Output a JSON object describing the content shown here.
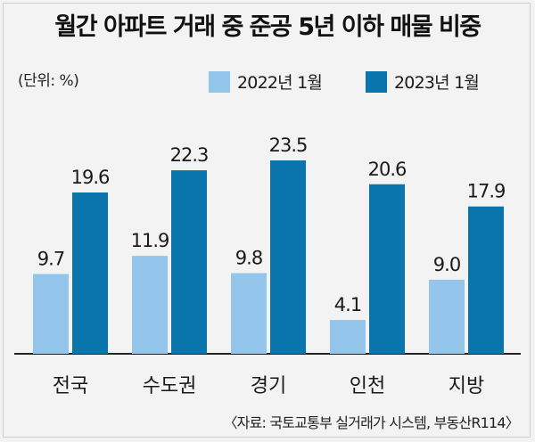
{
  "title": "월간 아파트 거래 중 준공 5년 이하 매물 비중",
  "unit_label": "(단위: %)",
  "source": "〈자료: 국토교통부 실거래가 시스템, 부동산R114〉",
  "colors": {
    "light": "#93c6ea",
    "dark": "#0a74ac",
    "axis": "#222222"
  },
  "chart_data": {
    "type": "bar",
    "title": "월간 아파트 거래 중 준공 5년 이하 매물 비중",
    "ylabel": "(단위: %)",
    "xlabel": "",
    "categories": [
      "전국",
      "수도권",
      "경기",
      "인천",
      "지방"
    ],
    "series": [
      {
        "name": "2022년 1월",
        "values": [
          9.7,
          11.9,
          9.8,
          4.1,
          9.0
        ],
        "labels": [
          "9.7",
          "11.9",
          "9.8",
          "4.1",
          "9.0"
        ],
        "color": "#93c6ea"
      },
      {
        "name": "2023년 1월",
        "values": [
          19.6,
          22.3,
          23.5,
          20.6,
          17.9
        ],
        "labels": [
          "19.6",
          "22.3",
          "23.5",
          "20.6",
          "17.9"
        ],
        "color": "#0a74ac"
      }
    ],
    "ylim": [
      0,
      23.5
    ],
    "legend": "top-right",
    "grid": false
  }
}
